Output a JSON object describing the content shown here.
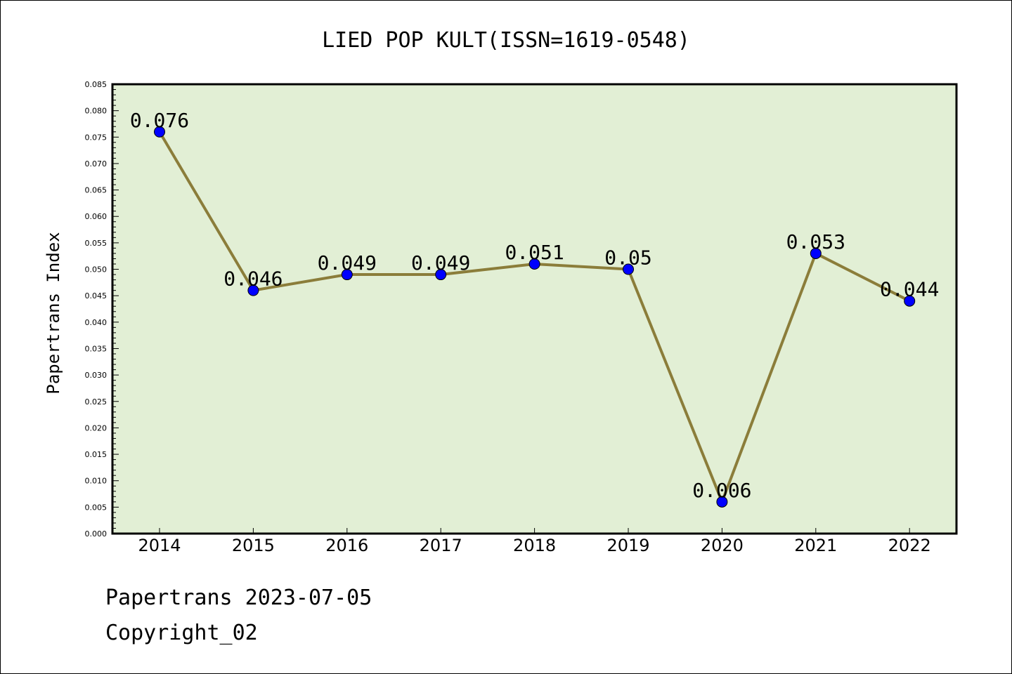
{
  "chart_data": {
    "type": "line",
    "title": "LIED POP KULT(ISSN=1619-0548)",
    "xlabel": "",
    "ylabel": "Papertrans Index",
    "categories": [
      "2014",
      "2015",
      "2016",
      "2017",
      "2018",
      "2019",
      "2020",
      "2021",
      "2022"
    ],
    "values": [
      0.076,
      0.046,
      0.049,
      0.049,
      0.051,
      0.05,
      0.006,
      0.053,
      0.044
    ],
    "data_labels": [
      "0.076",
      "0.046",
      "0.049",
      "0.049",
      "0.051",
      "0.05",
      "0.006",
      "0.053",
      "0.044"
    ],
    "ylim": [
      0,
      0.085
    ],
    "yticks": [
      "0.000",
      "0.005",
      "0.010",
      "0.015",
      "0.020",
      "0.025",
      "0.030",
      "0.035",
      "0.040",
      "0.045",
      "0.050",
      "0.055",
      "0.060",
      "0.065",
      "0.070",
      "0.075",
      "0.080",
      "0.085"
    ],
    "grid": false,
    "colors": {
      "line": "#8b7d3a",
      "marker": "#0000ff",
      "plot_background": "#e2efd5",
      "axes": "#000000"
    }
  },
  "footer": {
    "date_line": "Papertrans 2023-07-05",
    "copyright_line": "Copyright_02"
  }
}
